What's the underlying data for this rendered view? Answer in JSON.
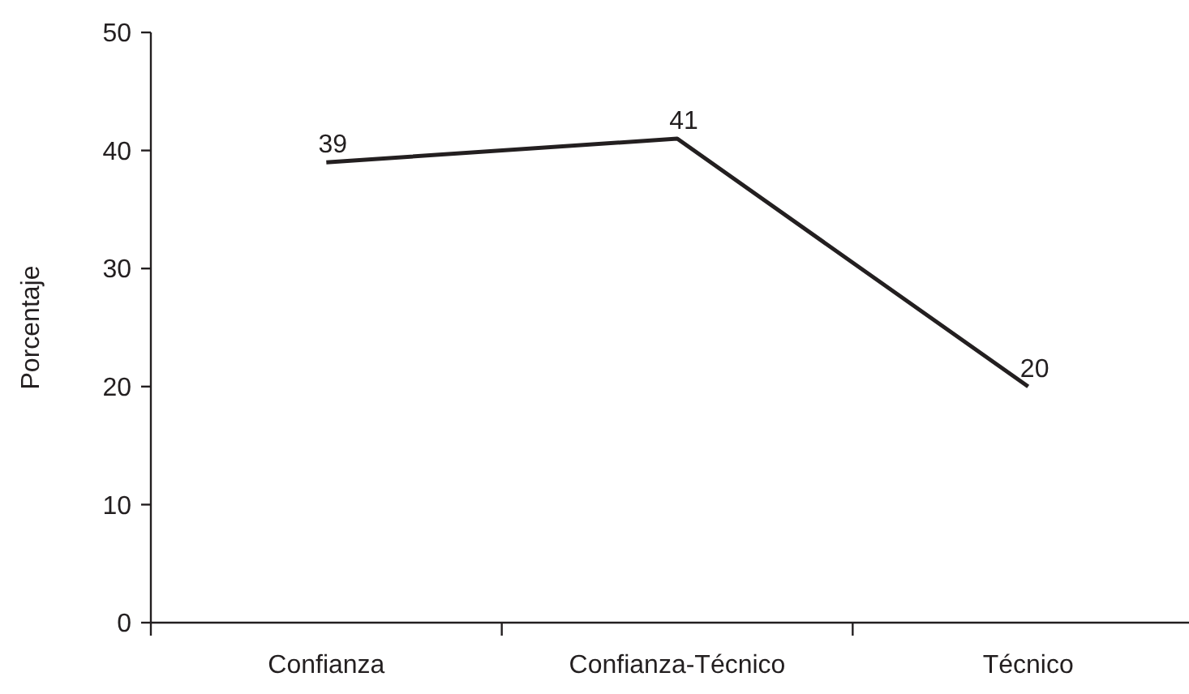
{
  "chart_data": {
    "type": "line",
    "ylabel": "Porcentaje",
    "categories": [
      "Confianza",
      "Confianza-Técnico",
      "Técnico"
    ],
    "series": [
      {
        "color": "#231f20",
        "values": [
          39,
          41,
          20
        ]
      }
    ],
    "ylim": [
      0,
      50
    ],
    "yticks": [
      0,
      10,
      20,
      30,
      40,
      50
    ],
    "data_labels": true,
    "marker": "none",
    "line_style": "solid"
  }
}
